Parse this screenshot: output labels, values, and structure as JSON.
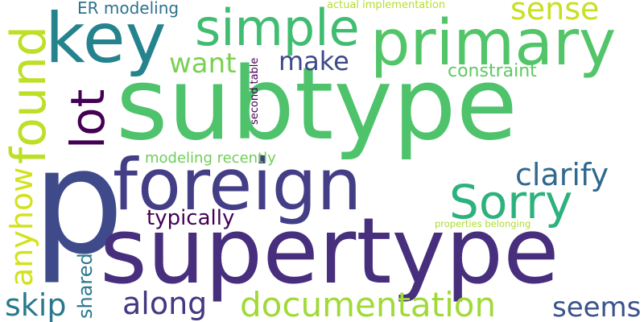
{
  "words": {
    "subtype": {
      "text": "subtype",
      "color": "#4ec36b"
    },
    "p": {
      "text": "p",
      "color": "#3f4a8a"
    },
    "supertype": {
      "text": "supertype",
      "color": "#472f7d"
    },
    "foreign": {
      "text": "foreign",
      "color": "#433e85"
    },
    "primary": {
      "text": "primary",
      "color": "#52c569"
    },
    "key": {
      "text": "key",
      "color": "#25838e"
    },
    "simple": {
      "text": "simple",
      "color": "#40bd72"
    },
    "sorry": {
      "text": "Sorry",
      "color": "#2db27d"
    },
    "documentation": {
      "text": "documentation",
      "color": "#a0da39"
    },
    "found": {
      "text": "found",
      "color": "#bddf26"
    },
    "lot": {
      "text": "lot",
      "color": "#440154"
    },
    "clarify": {
      "text": "clarify",
      "color": "#31688e"
    },
    "along": {
      "text": "along",
      "color": "#453781"
    },
    "anyhow": {
      "text": "anyhow",
      "color": "#d2e21b"
    },
    "skip": {
      "text": "skip",
      "color": "#2a788e"
    },
    "seems": {
      "text": "seems",
      "color": "#3b528b"
    },
    "sense": {
      "text": "sense",
      "color": "#c8e020"
    },
    "want": {
      "text": "want",
      "color": "#7ad151"
    },
    "make": {
      "text": "make",
      "color": "#3e4989"
    },
    "typically": {
      "text": "typically",
      "color": "#440154"
    },
    "constraint": {
      "text": "constraint",
      "color": "#5ec962"
    },
    "shared": {
      "text": "shared",
      "color": "#2a788e"
    },
    "er_modeling": {
      "text": "ER modeling",
      "color": "#2c728e"
    },
    "modeling_recently": {
      "text": "modeling recently",
      "color": "#6ece58"
    },
    "actual_implementation": {
      "text": "actual implementation",
      "color": "#b5de2b"
    },
    "second_table": {
      "text": "second table",
      "color": "#440154"
    },
    "properties_belonging": {
      "text": "properties belonging",
      "color": "#addc30"
    }
  }
}
